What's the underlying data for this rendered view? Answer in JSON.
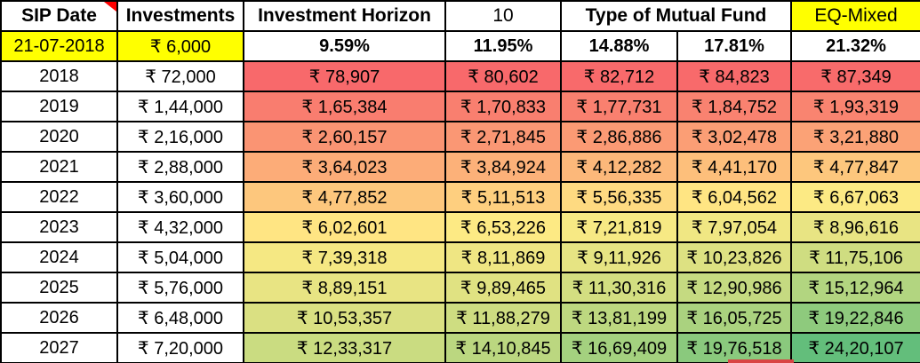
{
  "table": {
    "header": {
      "sip_date": "SIP Date",
      "investments": "Investments",
      "investment_horizon": "Investment Horizon",
      "horizon_years": "10",
      "fund_type": "Type of Mutual Fund",
      "fund_selected": "EQ-Mixed"
    },
    "inputs": {
      "sip_start_date": "21-07-2018",
      "monthly_investment": "₹ 6,000",
      "return_rates": [
        "9.59%",
        "11.95%",
        "14.88%",
        "17.81%",
        "21.32%"
      ]
    },
    "rows": [
      {
        "year": "2018",
        "invested": "₹ 72,000",
        "returns": [
          "₹ 78,907",
          "₹ 80,602",
          "₹ 82,712",
          "₹ 84,823",
          "₹ 87,349"
        ]
      },
      {
        "year": "2019",
        "invested": "₹ 1,44,000",
        "returns": [
          "₹ 1,65,384",
          "₹ 1,70,833",
          "₹ 1,77,731",
          "₹ 1,84,752",
          "₹ 1,93,319"
        ]
      },
      {
        "year": "2020",
        "invested": "₹ 2,16,000",
        "returns": [
          "₹ 2,60,157",
          "₹ 2,71,845",
          "₹ 2,86,886",
          "₹ 3,02,478",
          "₹ 3,21,880"
        ]
      },
      {
        "year": "2021",
        "invested": "₹ 2,88,000",
        "returns": [
          "₹ 3,64,023",
          "₹ 3,84,924",
          "₹ 4,12,282",
          "₹ 4,41,170",
          "₹ 4,77,847"
        ]
      },
      {
        "year": "2022",
        "invested": "₹ 3,60,000",
        "returns": [
          "₹ 4,77,852",
          "₹ 5,11,513",
          "₹ 5,56,335",
          "₹ 6,04,562",
          "₹ 6,67,063"
        ]
      },
      {
        "year": "2023",
        "invested": "₹ 4,32,000",
        "returns": [
          "₹ 6,02,601",
          "₹ 6,53,226",
          "₹ 7,21,819",
          "₹ 7,97,054",
          "₹ 8,96,616"
        ]
      },
      {
        "year": "2024",
        "invested": "₹ 5,04,000",
        "returns": [
          "₹ 7,39,318",
          "₹ 8,11,869",
          "₹ 9,11,926",
          "₹ 10,23,826",
          "₹ 11,75,106"
        ]
      },
      {
        "year": "2025",
        "invested": "₹ 5,76,000",
        "returns": [
          "₹ 8,89,151",
          "₹ 9,89,465",
          "₹ 11,30,316",
          "₹ 12,90,986",
          "₹ 15,12,964"
        ]
      },
      {
        "year": "2026",
        "invested": "₹ 6,48,000",
        "returns": [
          "₹ 10,53,357",
          "₹ 11,88,279",
          "₹ 13,81,199",
          "₹ 16,05,725",
          "₹ 19,22,846"
        ]
      },
      {
        "year": "2027",
        "invested": "₹ 7,20,000",
        "returns": [
          "₹ 12,33,317",
          "₹ 14,10,845",
          "₹ 16,69,409",
          "₹ 19,76,518",
          "₹ 24,20,107"
        ]
      }
    ]
  },
  "colors": {
    "highlight_yellow": "#FFFF00",
    "scale_min_red": "#F8696B",
    "scale_mid_yellow": "#FFEB84",
    "scale_max_green": "#63BE7B",
    "comment_marker_red": "#FF0000",
    "bottom_marker_red": "#D94444",
    "border_black": "#000000"
  }
}
